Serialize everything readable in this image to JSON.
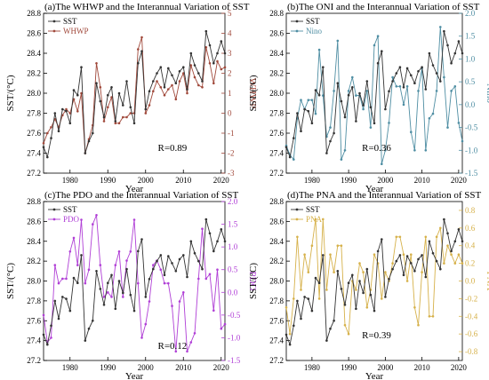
{
  "figure": {
    "colors": {
      "sst": "#333333",
      "whwp": "#a0483a",
      "oni": "#4f8ea3",
      "pdo": "#b03fd6",
      "pna": "#d6b14a"
    }
  },
  "chart_data": [
    {
      "type": "line",
      "title": "(a)The WHWP and the Interannual Variation of SST",
      "xlabel": "Year",
      "ylabel": "SST/(°C)",
      "y2label": "WHWP",
      "annotation": "R=0.89",
      "x": [
        1973,
        1974,
        1975,
        1976,
        1977,
        1978,
        1979,
        1980,
        1981,
        1982,
        1983,
        1984,
        1985,
        1986,
        1987,
        1988,
        1989,
        1990,
        1991,
        1992,
        1993,
        1994,
        1995,
        1996,
        1997,
        1998,
        1999,
        2000,
        2001,
        2002,
        2003,
        2004,
        2005,
        2006,
        2007,
        2008,
        2009,
        2010,
        2011,
        2012,
        2013,
        2014,
        2015,
        2016,
        2017,
        2018,
        2019,
        2020,
        2021
      ],
      "xlim": [
        1973,
        2021
      ],
      "ylim": [
        27.2,
        28.8
      ],
      "y2lim": [
        -3,
        5
      ],
      "xticks": [
        1980,
        1990,
        2000,
        2010,
        2020
      ],
      "yticks": [
        27.2,
        27.4,
        27.6,
        27.8,
        28.0,
        28.2,
        28.4,
        28.6,
        28.8
      ],
      "y2ticks": [
        -3,
        -2,
        -1,
        0,
        1,
        2,
        3,
        4,
        5
      ],
      "legend": "top-left",
      "series": [
        {
          "name": "SST",
          "axis": "left",
          "color": "#333333",
          "values": [
            27.46,
            27.36,
            27.55,
            27.8,
            27.62,
            27.84,
            27.82,
            27.7,
            28.03,
            27.98,
            28.26,
            27.4,
            27.52,
            27.6,
            28.1,
            27.92,
            27.76,
            27.98,
            28.06,
            27.72,
            28.0,
            27.88,
            28.12,
            27.86,
            27.7,
            28.3,
            28.42,
            27.84,
            28.02,
            28.12,
            28.2,
            28.26,
            28.06,
            28.25,
            28.18,
            28.1,
            28.22,
            28.26,
            28.04,
            28.4,
            28.28,
            28.2,
            28.12,
            28.62,
            28.48,
            28.3,
            28.4,
            28.52,
            28.4
          ]
        },
        {
          "name": "WHWP",
          "axis": "right",
          "color": "#a0483a",
          "values": [
            -1.5,
            -1.0,
            -0.7,
            -0.3,
            -0.7,
            -0.1,
            0.2,
            0.0,
            0.7,
            0.1,
            1.0,
            -2.0,
            -1.3,
            -0.6,
            2.5,
            1.3,
            -0.4,
            0.3,
            0.8,
            -0.5,
            -0.5,
            -0.2,
            -0.2,
            0.0,
            0.0,
            3.2,
            3.8,
            0.0,
            0.4,
            1.1,
            1.6,
            1.3,
            0.9,
            1.2,
            1.4,
            0.7,
            1.6,
            2.0,
            1.0,
            2.4,
            1.8,
            1.4,
            1.3,
            3.3,
            2.5,
            1.5,
            2.6,
            2.2,
            2.3
          ]
        }
      ]
    },
    {
      "type": "line",
      "title": "(b)The ONI and the Interannual Variation of SST",
      "xlabel": "Year",
      "ylabel": "SST/(°C)",
      "y2label": "Nino",
      "annotation": "R=0.36",
      "x": [
        1973,
        1974,
        1975,
        1976,
        1977,
        1978,
        1979,
        1980,
        1981,
        1982,
        1983,
        1984,
        1985,
        1986,
        1987,
        1988,
        1989,
        1990,
        1991,
        1992,
        1993,
        1994,
        1995,
        1996,
        1997,
        1998,
        1999,
        2000,
        2001,
        2002,
        2003,
        2004,
        2005,
        2006,
        2007,
        2008,
        2009,
        2010,
        2011,
        2012,
        2013,
        2014,
        2015,
        2016,
        2017,
        2018,
        2019,
        2020,
        2021
      ],
      "xlim": [
        1973,
        2021
      ],
      "ylim": [
        27.2,
        28.8
      ],
      "y2lim": [
        -1.5,
        2.0
      ],
      "xticks": [
        1980,
        1990,
        2000,
        2010,
        2020
      ],
      "yticks": [
        27.2,
        27.4,
        27.6,
        27.8,
        28.0,
        28.2,
        28.4,
        28.6,
        28.8
      ],
      "y2ticks": [
        -1.5,
        -1.0,
        -0.5,
        0.0,
        0.5,
        1.0,
        1.5,
        2.0
      ],
      "legend": "top-left",
      "series": [
        {
          "name": "SST",
          "axis": "left",
          "color": "#333333",
          "values": [
            27.46,
            27.36,
            27.55,
            27.8,
            27.62,
            27.84,
            27.82,
            27.7,
            28.03,
            27.98,
            28.26,
            27.4,
            27.52,
            27.6,
            28.1,
            27.92,
            27.76,
            27.98,
            28.06,
            27.72,
            28.0,
            27.88,
            28.12,
            27.86,
            27.7,
            28.3,
            28.42,
            27.84,
            28.02,
            28.12,
            28.2,
            28.26,
            28.06,
            28.25,
            28.18,
            28.1,
            28.22,
            28.26,
            28.04,
            28.4,
            28.28,
            28.2,
            28.12,
            28.62,
            28.48,
            28.3,
            28.4,
            28.52,
            28.4
          ]
        },
        {
          "name": "Nino",
          "axis": "right",
          "color": "#4f8ea3",
          "values": [
            -0.9,
            -1.1,
            -1.2,
            -0.3,
            0.1,
            -0.1,
            0.1,
            0.1,
            -0.2,
            1.2,
            0.2,
            -0.7,
            -0.5,
            0.3,
            1.4,
            -1.2,
            -1.0,
            0.3,
            0.6,
            0.2,
            0.2,
            -0.1,
            0.3,
            -0.5,
            1.3,
            1.5,
            -1.3,
            -1.0,
            -0.4,
            0.6,
            0.4,
            0.4,
            0.0,
            0.4,
            -0.6,
            -1.0,
            0.3,
            0.8,
            -1.0,
            -0.3,
            -0.2,
            0.3,
            1.7,
            0.6,
            -0.5,
            0.3,
            0.4,
            -0.4,
            -0.8
          ]
        }
      ]
    },
    {
      "type": "line",
      "title": "(c)The PDO and the Interannual Variation of SST",
      "xlabel": "Year",
      "ylabel": "SST/(°C)",
      "y2label": "PDO",
      "annotation": "R=0.12",
      "x": [
        1973,
        1974,
        1975,
        1976,
        1977,
        1978,
        1979,
        1980,
        1981,
        1982,
        1983,
        1984,
        1985,
        1986,
        1987,
        1988,
        1989,
        1990,
        1991,
        1992,
        1993,
        1994,
        1995,
        1996,
        1997,
        1998,
        1999,
        2000,
        2001,
        2002,
        2003,
        2004,
        2005,
        2006,
        2007,
        2008,
        2009,
        2010,
        2011,
        2012,
        2013,
        2014,
        2015,
        2016,
        2017,
        2018,
        2019,
        2020,
        2021
      ],
      "xlim": [
        1973,
        2021
      ],
      "ylim": [
        27.2,
        28.8
      ],
      "y2lim": [
        -1.5,
        2.0
      ],
      "xticks": [
        1980,
        1990,
        2000,
        2010,
        2020
      ],
      "yticks": [
        27.2,
        27.4,
        27.6,
        27.8,
        28.0,
        28.2,
        28.4,
        28.6,
        28.8
      ],
      "y2ticks": [
        -1.5,
        -1.0,
        -0.5,
        0.0,
        0.5,
        1.0,
        1.5,
        2.0
      ],
      "legend": "top-left",
      "series": [
        {
          "name": "SST",
          "axis": "left",
          "color": "#333333",
          "values": [
            27.46,
            27.36,
            27.55,
            27.8,
            27.62,
            27.84,
            27.82,
            27.7,
            28.03,
            27.98,
            28.26,
            27.4,
            27.52,
            27.6,
            28.1,
            27.92,
            27.76,
            27.98,
            28.06,
            27.72,
            28.0,
            27.88,
            28.12,
            27.86,
            27.7,
            28.3,
            28.42,
            27.84,
            28.02,
            28.12,
            28.2,
            28.26,
            28.06,
            28.25,
            28.18,
            28.1,
            28.22,
            28.26,
            28.04,
            28.4,
            28.28,
            28.2,
            28.12,
            28.62,
            28.48,
            28.3,
            28.4,
            28.52,
            28.4
          ]
        },
        {
          "name": "PDO",
          "axis": "right",
          "color": "#b03fd6",
          "values": [
            -0.5,
            -1.1,
            -1.0,
            0.6,
            0.2,
            0.3,
            0.3,
            0.9,
            1.2,
            0.6,
            1.6,
            0.2,
            0.5,
            1.5,
            1.7,
            0.6,
            -0.1,
            0.0,
            -0.1,
            0.6,
            0.9,
            -0.1,
            0.7,
            0.9,
            1.6,
            0.2,
            -1.0,
            -0.7,
            -0.2,
            0.6,
            0.7,
            0.5,
            0.2,
            0.2,
            -0.3,
            -1.3,
            -0.2,
            0.0,
            -1.3,
            -1.1,
            -0.9,
            0.3,
            1.4,
            0.3,
            0.4,
            -0.4,
            0.5,
            -0.8,
            -0.7
          ]
        }
      ]
    },
    {
      "type": "line",
      "title": "(d)The PNA and the Interannual Variation of SST",
      "xlabel": "Year",
      "ylabel": "SST/(°C)",
      "y2label": "PNA",
      "annotation": "R=0.39",
      "x": [
        1973,
        1974,
        1975,
        1976,
        1977,
        1978,
        1979,
        1980,
        1981,
        1982,
        1983,
        1984,
        1985,
        1986,
        1987,
        1988,
        1989,
        1990,
        1991,
        1992,
        1993,
        1994,
        1995,
        1996,
        1997,
        1998,
        1999,
        2000,
        2001,
        2002,
        2003,
        2004,
        2005,
        2006,
        2007,
        2008,
        2009,
        2010,
        2011,
        2012,
        2013,
        2014,
        2015,
        2016,
        2017,
        2018,
        2019,
        2020,
        2021
      ],
      "xlim": [
        1973,
        2021
      ],
      "ylim": [
        27.2,
        28.8
      ],
      "y2lim": [
        -0.9,
        0.9
      ],
      "xticks": [
        1980,
        1990,
        2000,
        2010,
        2020
      ],
      "yticks": [
        27.2,
        27.4,
        27.6,
        27.8,
        28.0,
        28.2,
        28.4,
        28.6,
        28.8
      ],
      "y2ticks": [
        -0.8,
        -0.6,
        -0.4,
        -0.2,
        0.0,
        0.2,
        0.4,
        0.6,
        0.8
      ],
      "legend": "top-left",
      "series": [
        {
          "name": "SST",
          "axis": "left",
          "color": "#333333",
          "values": [
            27.46,
            27.36,
            27.55,
            27.8,
            27.62,
            27.84,
            27.82,
            27.7,
            28.03,
            27.98,
            28.26,
            27.4,
            27.52,
            27.6,
            28.1,
            27.92,
            27.76,
            27.98,
            28.06,
            27.72,
            28.0,
            27.88,
            28.12,
            27.86,
            27.7,
            28.3,
            28.42,
            27.84,
            28.02,
            28.12,
            28.2,
            28.26,
            28.06,
            28.25,
            28.18,
            28.1,
            28.22,
            28.26,
            28.04,
            28.4,
            28.28,
            28.2,
            28.12,
            28.62,
            28.48,
            28.3,
            28.4,
            28.52,
            28.4
          ]
        },
        {
          "name": "PNA",
          "axis": "right",
          "color": "#d6b14a",
          "values": [
            -0.3,
            -0.6,
            -0.2,
            0.5,
            -0.1,
            0.3,
            0.1,
            0.4,
            0.7,
            -0.2,
            0.7,
            -0.1,
            0.3,
            0.1,
            0.4,
            0.4,
            -0.5,
            -0.6,
            0.0,
            -0.1,
            0.2,
            0.1,
            -0.3,
            -0.1,
            0.3,
            0.2,
            -0.2,
            0.1,
            0.0,
            0.2,
            0.5,
            0.5,
            0.3,
            0.0,
            0.3,
            -0.3,
            -0.5,
            0.1,
            0.5,
            -0.4,
            -0.4,
            0.5,
            0.6,
            0.2,
            0.4,
            0.3,
            0.2,
            0.3,
            0.2
          ]
        }
      ]
    }
  ]
}
